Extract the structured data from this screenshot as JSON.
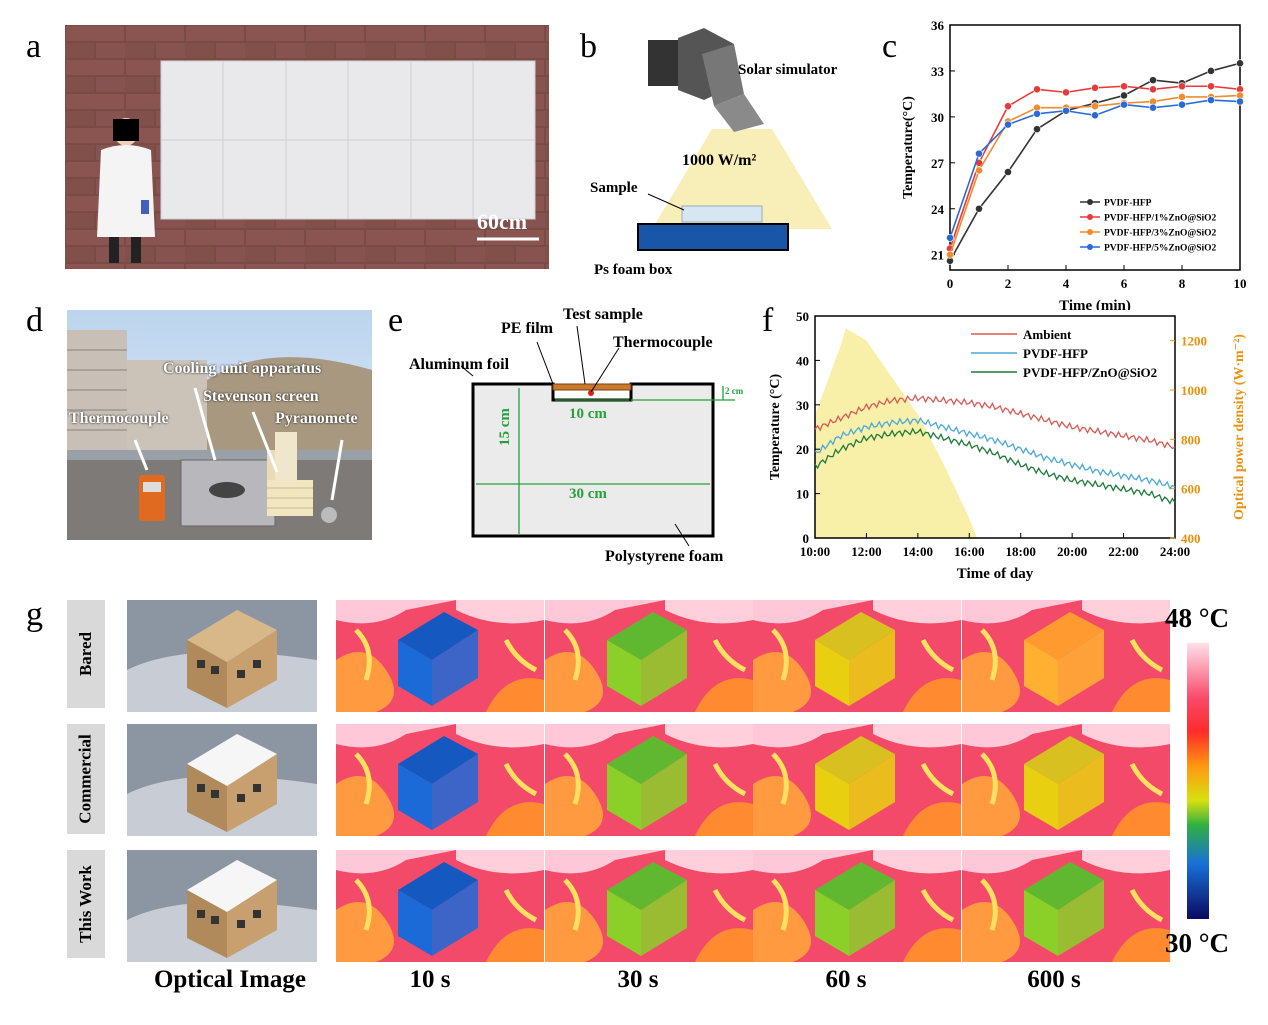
{
  "panels": {
    "a": "a",
    "b": "b",
    "c": "c",
    "d": "d",
    "e": "e",
    "f": "f",
    "g": "g"
  },
  "panel_a": {
    "scale_label": "60cm"
  },
  "panel_b": {
    "simulator": "Solar simulator",
    "irradiance": "1000 W/m²",
    "sample": "Sample",
    "box": "Ps foam box"
  },
  "panel_d": {
    "cooling": "Cooling unit apparatus",
    "stevenson": "Stevenson screen",
    "thermocouple": "Thermocouple",
    "pyranometer": "Pyranomete"
  },
  "panel_e": {
    "pe_film": "PE film",
    "test_sample": "Test sample",
    "thermocouple": "Thermocouple",
    "aluminum": "Aluminum foil",
    "dim_2": "2 cm",
    "dim_10": "10 cm",
    "dim_15": "15 cm",
    "dim_30": "30 cm",
    "foam": "Polystyrene foam"
  },
  "panel_g": {
    "rows": [
      "Bared",
      "Commercial",
      "This Work"
    ],
    "cols": [
      "Optical Image",
      "10 s",
      "30 s",
      "60 s",
      "600 s"
    ],
    "scale_max": "48 °C",
    "scale_min": "30 °C"
  },
  "colors": {
    "pvdf": "#333333",
    "zno1": "#e83a3a",
    "zno3": "#f08c2e",
    "zno5": "#2a6ad8",
    "ambient": "#d85a55",
    "pvdf_f": "#4aa8dc",
    "zno_f": "#1f7a3a",
    "solar": "#f8f0a8",
    "axis_right": "#e8920c"
  },
  "chart_data": [
    {
      "id": "c",
      "type": "line",
      "xlabel": "Time (min)",
      "ylabel": "Temperature(°C)",
      "xlim": [
        0,
        10
      ],
      "ylim": [
        20,
        36
      ],
      "xticks": [
        0,
        2,
        4,
        6,
        8,
        10
      ],
      "yticks": [
        21,
        24,
        27,
        30,
        33,
        36
      ],
      "x": [
        0,
        1,
        2,
        3,
        4,
        5,
        6,
        7,
        8,
        9,
        10
      ],
      "series": [
        {
          "name": "PVDF-HFP",
          "color": "#333333",
          "values": [
            20.6,
            24.0,
            26.4,
            29.2,
            30.4,
            30.9,
            31.4,
            32.4,
            32.2,
            33.0,
            33.5
          ]
        },
        {
          "name": "PVDF-HFP/1%ZnO@SiO2",
          "color": "#e83a3a",
          "values": [
            21.4,
            27.0,
            30.7,
            31.8,
            31.6,
            31.9,
            32.0,
            31.8,
            32.0,
            32.0,
            31.8
          ]
        },
        {
          "name": "PVDF-HFP/3%ZnO@SiO2",
          "color": "#f08c2e",
          "values": [
            21.0,
            26.5,
            29.7,
            30.6,
            30.6,
            30.7,
            30.9,
            31.0,
            31.3,
            31.3,
            31.4
          ]
        },
        {
          "name": "PVDF-HFP/5%ZnO@SiO2",
          "color": "#2a6ad8",
          "values": [
            22.1,
            27.6,
            29.5,
            30.2,
            30.4,
            30.1,
            30.8,
            30.6,
            30.8,
            31.1,
            31.0
          ]
        }
      ]
    },
    {
      "id": "f",
      "type": "line",
      "xlabel": "Time of day",
      "ylabel": "Temperature (°C)",
      "ylabel_right": "Optical power density (W·m⁻²)",
      "xticks": [
        "10:00",
        "12:00",
        "14:00",
        "16:00",
        "18:00",
        "20:00",
        "22:00",
        "24:00"
      ],
      "xlim": [
        10,
        24
      ],
      "ylim": [
        0,
        50
      ],
      "yticks": [
        0,
        10,
        20,
        30,
        40,
        50
      ],
      "ylim_right": [
        400,
        1300
      ],
      "yticks_right": [
        400,
        600,
        800,
        1000,
        1200
      ],
      "x": [
        10,
        11,
        12,
        13,
        14,
        15,
        16,
        17,
        18,
        19,
        20,
        21,
        22,
        23,
        24
      ],
      "series": [
        {
          "name": "Ambient",
          "color": "#d85a55",
          "values": [
            24.5,
            27,
            29.5,
            31,
            31.5,
            31,
            30.5,
            29.5,
            28,
            26.5,
            25,
            24,
            23,
            22,
            20.5
          ]
        },
        {
          "name": "PVDF-HFP",
          "color": "#4aa8dc",
          "values": [
            19,
            23,
            25,
            26,
            26.5,
            25,
            23.5,
            22,
            20,
            18,
            16.5,
            15,
            14,
            13,
            11.5
          ]
        },
        {
          "name": "PVDF-HFP/ZnO@SiO2",
          "color": "#1f7a3a",
          "values": [
            16,
            20,
            22.5,
            23.5,
            24,
            22.5,
            21,
            19,
            16.5,
            14.5,
            13,
            12,
            11,
            10,
            8
          ]
        }
      ],
      "solar": {
        "x": [
          10,
          11,
          11.2,
          12,
          13,
          14,
          15,
          16,
          16.3
        ],
        "values": [
          900,
          1180,
          1250,
          1200,
          1050,
          900,
          700,
          480,
          400
        ]
      }
    }
  ]
}
